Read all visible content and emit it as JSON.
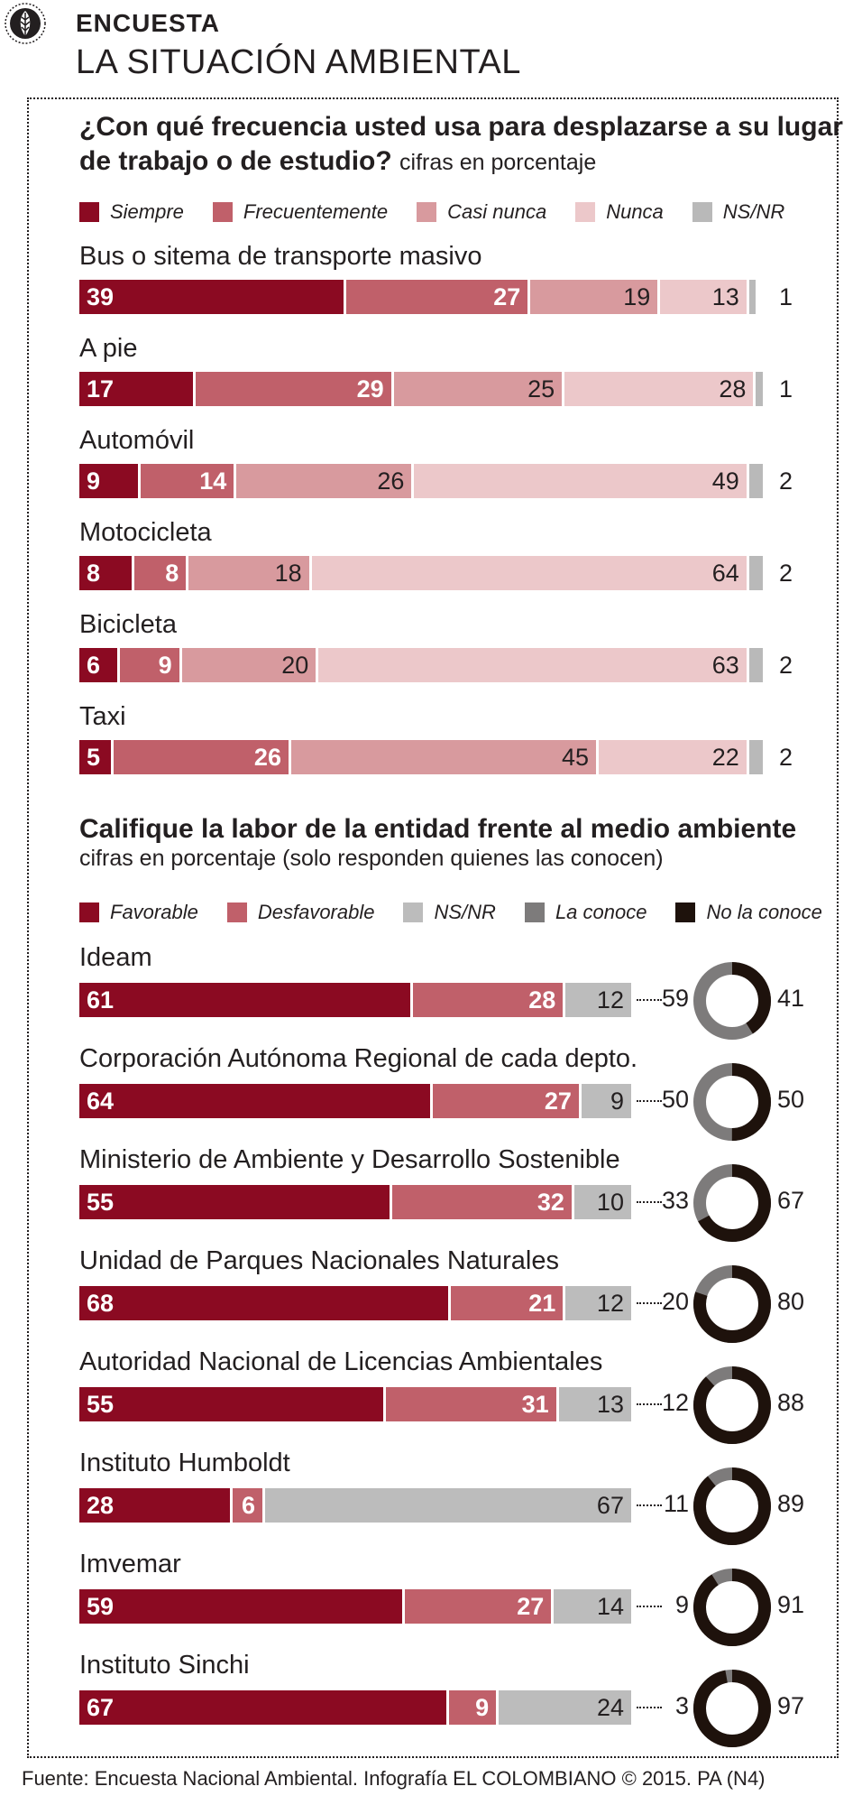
{
  "header": {
    "kicker": "ENCUESTA",
    "title": "LA SITUACIÓN AMBIENTAL"
  },
  "section1": {
    "question_line1": "¿Con qué frecuencia usted usa para desplazarse a su lugar",
    "question_line2": "de trabajo o de estudio?",
    "unit_note": "cifras en porcentaje",
    "legend": [
      "Siempre",
      "Frecuentemente",
      "Casi nunca",
      "Nunca",
      "NS/NR"
    ]
  },
  "section2": {
    "question": "Califique la labor de la entidad frente al medio ambiente",
    "unit_note": "cifras en porcentaje (solo responden quienes las conocen)",
    "legend": [
      "Favorable",
      "Desfavorable",
      "NS/NR",
      "La conoce",
      "No la conoce"
    ]
  },
  "colors": {
    "siempre": "#8b0a22",
    "frecuentemente": "#c0606a",
    "casi_nunca": "#d89a9e",
    "nunca": "#ecc8ca",
    "nsnr_gray": "#b9b9b9",
    "favorable": "#8b0a22",
    "desfavorable": "#c0606a",
    "nsnr2": "#bcbcbc",
    "la_conoce": "#7d7b7b",
    "no_la_conoce": "#1e120c"
  },
  "chart_data": [
    {
      "type": "bar",
      "stacked": true,
      "orientation": "horizontal",
      "title": "¿Con qué frecuencia usted usa para desplazarse a su lugar de trabajo o de estudio?",
      "categories": [
        "Bus o sitema de transporte masivo",
        "A pie",
        "Automóvil",
        "Motocicleta",
        "Bicicleta",
        "Taxi"
      ],
      "series": [
        {
          "name": "Siempre",
          "values": [
            39,
            17,
            9,
            8,
            6,
            5
          ]
        },
        {
          "name": "Frecuentemente",
          "values": [
            27,
            29,
            14,
            8,
            9,
            26
          ]
        },
        {
          "name": "Casi nunca",
          "values": [
            19,
            25,
            26,
            18,
            20,
            45
          ]
        },
        {
          "name": "Nunca",
          "values": [
            13,
            28,
            49,
            64,
            63,
            22
          ]
        },
        {
          "name": "NS/NR",
          "values": [
            1,
            1,
            2,
            2,
            2,
            2
          ]
        }
      ]
    },
    {
      "type": "bar",
      "stacked": true,
      "orientation": "horizontal",
      "title": "Califique la labor de la entidad frente al medio ambiente",
      "categories": [
        "Ideam",
        "Corporación Autónoma Regional de cada depto.",
        "Ministerio de Ambiente y Desarrollo Sostenible",
        "Unidad de Parques Nacionales Naturales",
        "Autoridad Nacional de Licencias Ambientales",
        "Instituto Humboldt",
        "Imvemar",
        "Instituto Sinchi"
      ],
      "series": [
        {
          "name": "Favorable",
          "values": [
            61,
            64,
            55,
            68,
            55,
            28,
            59,
            67
          ]
        },
        {
          "name": "Desfavorable",
          "values": [
            28,
            27,
            32,
            21,
            31,
            6,
            27,
            9
          ]
        },
        {
          "name": "NS/NR",
          "values": [
            12,
            9,
            10,
            12,
            13,
            67,
            14,
            24
          ]
        }
      ]
    },
    {
      "type": "pie",
      "donut": true,
      "categories": [
        "Ideam",
        "Corporación Autónoma Regional de cada depto.",
        "Ministerio de Ambiente y Desarrollo Sostenible",
        "Unidad de Parques Nacionales Naturales",
        "Autoridad Nacional de Licencias Ambientales",
        "Instituto Humboldt",
        "Imvemar",
        "Instituto Sinchi"
      ],
      "series": [
        {
          "name": "La conoce",
          "values": [
            59,
            50,
            33,
            20,
            12,
            11,
            9,
            3
          ]
        },
        {
          "name": "No la conoce",
          "values": [
            41,
            50,
            67,
            80,
            88,
            89,
            91,
            97
          ]
        }
      ]
    }
  ],
  "footer": "Fuente: Encuesta Nacional Ambiental. Infografía EL COLOMBIANO © 2015. PA (N4)"
}
